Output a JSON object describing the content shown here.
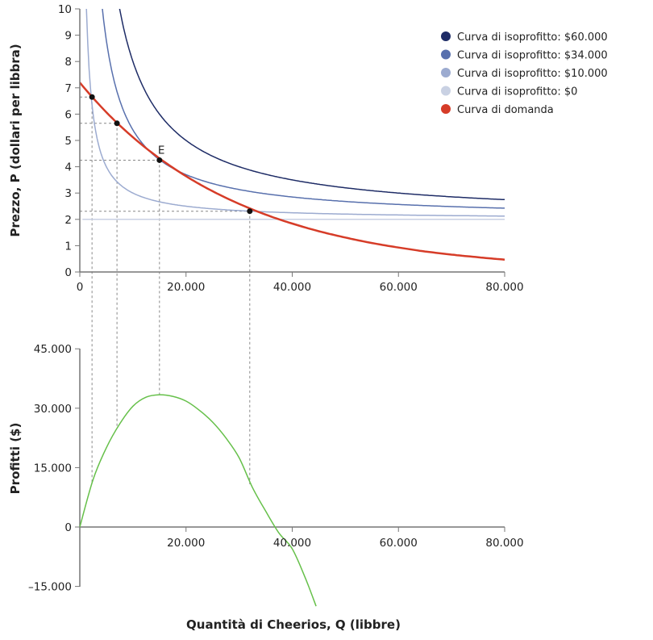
{
  "chart_data": [
    {
      "type": "line",
      "xlabel": "",
      "ylabel": "Prezzo, P (dollari per libbra)",
      "xlim": [
        0,
        80000
      ],
      "ylim": [
        0,
        10
      ],
      "xticks": [
        0,
        20000,
        40000,
        60000,
        80000
      ],
      "xtick_labels": [
        "0",
        "20.000",
        "40.000",
        "60.000",
        "80.000"
      ],
      "yticks": [
        0,
        1,
        2,
        3,
        4,
        5,
        6,
        7,
        8,
        9,
        10
      ],
      "ytick_labels": [
        "0",
        "1",
        "2",
        "3",
        "4",
        "5",
        "6",
        "7",
        "8",
        "9",
        "10"
      ],
      "grid": false,
      "legend_position": "top-right",
      "average_cost": 2,
      "isoprofit_series": [
        {
          "name": "Curva di isoprofitto: $60.000",
          "profit": 60000,
          "color": "#1e2c66"
        },
        {
          "name": "Curva di isoprofitto: $34.000",
          "profit": 34000,
          "color": "#5870ad"
        },
        {
          "name": "Curva di isoprofitto: $10.000",
          "profit": 10000,
          "color": "#9cabd0"
        },
        {
          "name": "Curva di isoprofitto: $0",
          "profit": 0,
          "color": "#c9d1e3"
        }
      ],
      "demand_series": {
        "name": "Curva di domanda",
        "color": "#d63c28",
        "x": [
          0,
          5000,
          10000,
          15000,
          20000,
          25000,
          30000,
          35000,
          40000,
          45000,
          50000,
          55000,
          60000,
          65000,
          70000,
          75000,
          80000
        ],
        "y": [
          7.2,
          6.07,
          5.12,
          4.32,
          3.64,
          3.07,
          2.59,
          2.18,
          1.84,
          1.55,
          1.31,
          1.1,
          0.93,
          0.78,
          0.66,
          0.56,
          0.47
        ]
      },
      "points": [
        {
          "x": 2300,
          "y": 6.65,
          "label": ""
        },
        {
          "x": 7000,
          "y": 5.65,
          "label": ""
        },
        {
          "x": 15000,
          "y": 4.25,
          "label": "E"
        },
        {
          "x": 32000,
          "y": 2.31,
          "label": ""
        }
      ]
    },
    {
      "type": "line",
      "xlabel": "Quantità di Cheerios, Q (libbre)",
      "ylabel": "Profitti ($)",
      "xlim": [
        0,
        80000
      ],
      "ylim": [
        -15000,
        45000
      ],
      "xticks": [
        20000,
        40000,
        60000,
        80000
      ],
      "xtick_labels": [
        "20.000",
        "40.000",
        "60.000",
        "80.000"
      ],
      "yticks": [
        -15000,
        0,
        15000,
        30000,
        45000
      ],
      "ytick_labels": [
        "–15.000",
        "0",
        "15.000",
        "30.000",
        "45.000"
      ],
      "grid": false,
      "profit_series": {
        "color": "#66c04a",
        "x": [
          0,
          2500,
          5000,
          7500,
          10000,
          12500,
          15000,
          17500,
          20000,
          22500,
          25000,
          27500,
          30000,
          32500,
          35000,
          37500,
          40000,
          42500,
          44500
        ],
        "y": [
          0,
          12000,
          20000,
          26000,
          30500,
          32800,
          33400,
          33000,
          31800,
          29500,
          26500,
          22500,
          17500,
          10000,
          4000,
          -1500,
          -5500,
          -13000,
          -20000
        ]
      },
      "point_profits": [
        11000,
        25500,
        33400,
        10800
      ]
    }
  ]
}
